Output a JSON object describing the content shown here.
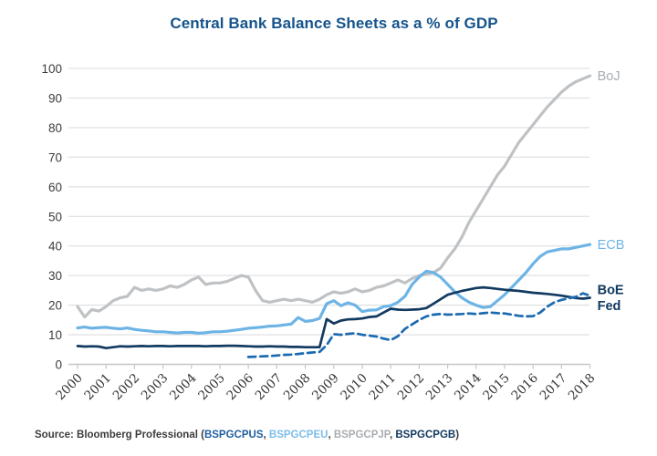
{
  "page": {
    "title": "Central Bank Balance Sheets as a % of GDP"
  },
  "chart_data": {
    "type": "line",
    "title": "Central Bank Balance Sheets as a % of GDP",
    "xlabel": "",
    "ylabel": "",
    "xlim": [
      2000,
      2018
    ],
    "ylim": [
      0,
      100
    ],
    "grid": "horizontal",
    "legend_position": "line-end-labels-right",
    "x_ticks": [
      2000,
      2001,
      2002,
      2003,
      2004,
      2005,
      2006,
      2007,
      2008,
      2009,
      2010,
      2011,
      2012,
      2013,
      2014,
      2015,
      2016,
      2017,
      2018
    ],
    "y_ticks": [
      0,
      10,
      20,
      30,
      40,
      50,
      60,
      70,
      80,
      90,
      100
    ],
    "series": [
      {
        "name": "BoJ",
        "label": "BoJ",
        "color": "#bfc2c4",
        "label_color": "#a9adb0",
        "dash": false,
        "width": 3.2,
        "label_bold": false,
        "label_dy": 0,
        "x_start": 2000,
        "x_step": 0.25,
        "values": [
          19.5,
          16.0,
          18.5,
          18.0,
          19.5,
          21.5,
          22.5,
          23.0,
          26.0,
          25.0,
          25.5,
          25.0,
          25.5,
          26.5,
          26.0,
          27.0,
          28.5,
          29.5,
          27.0,
          27.5,
          27.5,
          28.0,
          29.0,
          30.0,
          29.5,
          25.0,
          21.5,
          21.0,
          21.5,
          22.0,
          21.5,
          22.0,
          21.5,
          21.0,
          22.0,
          23.5,
          24.5,
          24.0,
          24.5,
          25.5,
          24.5,
          25.0,
          26.0,
          26.5,
          27.5,
          28.5,
          27.5,
          29.0,
          30.0,
          30.5,
          31.0,
          32.5,
          36.0,
          39.0,
          43.0,
          48.0,
          52.0,
          56.0,
          60.0,
          64.0,
          67.0,
          71.0,
          75.0,
          78.0,
          81.0,
          84.0,
          87.0,
          89.5,
          92.0,
          94.0,
          95.5,
          96.5,
          97.5
        ]
      },
      {
        "name": "ECB",
        "label": "ECB",
        "color": "#6db4e6",
        "label_color": "#6db4e6",
        "dash": false,
        "width": 3.2,
        "label_bold": false,
        "label_dy": 0,
        "x_start": 2000,
        "x_step": 0.25,
        "values": [
          12.3,
          12.6,
          12.2,
          12.4,
          12.5,
          12.2,
          12.0,
          12.3,
          11.8,
          11.5,
          11.3,
          11.0,
          11.0,
          10.8,
          10.6,
          10.8,
          10.8,
          10.5,
          10.7,
          11.0,
          11.0,
          11.2,
          11.5,
          11.8,
          12.2,
          12.4,
          12.6,
          12.9,
          13.0,
          13.3,
          13.6,
          15.8,
          14.5,
          14.8,
          15.5,
          20.5,
          21.5,
          19.8,
          20.8,
          20.0,
          17.8,
          18.3,
          18.4,
          19.5,
          19.8,
          21.0,
          23.0,
          27.0,
          29.5,
          31.5,
          31.0,
          29.5,
          27.0,
          24.5,
          22.5,
          21.0,
          20.0,
          19.2,
          19.5,
          21.5,
          23.5,
          26.0,
          28.5,
          31.0,
          34.0,
          36.5,
          38.0,
          38.5,
          39.0,
          39.0,
          39.5,
          40.0,
          40.5
        ]
      },
      {
        "name": "BoE",
        "label": "BoE",
        "color": "#123a60",
        "label_color": "#123a60",
        "dash": false,
        "width": 2.7,
        "label_bold": true,
        "label_dy": -9,
        "x_start": 2000,
        "x_step": 0.25,
        "values": [
          6.2,
          6.0,
          6.1,
          6.0,
          5.5,
          5.8,
          6.1,
          6.0,
          6.1,
          6.2,
          6.1,
          6.2,
          6.2,
          6.1,
          6.2,
          6.2,
          6.2,
          6.2,
          6.1,
          6.2,
          6.2,
          6.3,
          6.3,
          6.2,
          6.1,
          6.0,
          6.0,
          6.1,
          6.0,
          6.0,
          5.9,
          5.9,
          5.8,
          5.8,
          5.8,
          15.3,
          13.8,
          14.8,
          15.2,
          15.3,
          15.5,
          16.0,
          16.2,
          17.5,
          18.8,
          18.5,
          18.4,
          18.5,
          18.6,
          19.0,
          20.5,
          22.0,
          23.5,
          24.2,
          24.8,
          25.3,
          25.8,
          26.0,
          25.8,
          25.5,
          25.2,
          25.0,
          24.8,
          24.5,
          24.2,
          24.0,
          23.8,
          23.5,
          23.2,
          22.8,
          22.4,
          22.2,
          22.5
        ]
      },
      {
        "name": "Fed",
        "label": "Fed",
        "color": "#1b6ab1",
        "label_color": "#123a60",
        "dash": true,
        "width": 2.7,
        "label_bold": true,
        "label_dy": 11,
        "x_start": 2006,
        "x_step": 0.25,
        "values": [
          2.5,
          2.6,
          2.7,
          2.8,
          3.0,
          3.2,
          3.3,
          3.5,
          3.8,
          4.0,
          4.2,
          6.5,
          10.2,
          10.0,
          10.3,
          10.5,
          10.0,
          9.7,
          9.4,
          8.7,
          8.2,
          9.5,
          12.0,
          13.5,
          15.0,
          16.2,
          16.8,
          17.0,
          16.8,
          16.9,
          17.0,
          17.2,
          17.0,
          17.3,
          17.5,
          17.3,
          17.2,
          16.8,
          16.4,
          16.2,
          16.3,
          17.5,
          19.5,
          21.0,
          21.8,
          22.3,
          22.8,
          24.0,
          23.2
        ]
      }
    ]
  },
  "source": {
    "segments": [
      {
        "text": "Source: Bloomberg Professional (",
        "color": "#3c3c3c"
      },
      {
        "text": "BSPGCPUS",
        "color": "#1d5e9e"
      },
      {
        "text": ", ",
        "color": "#3c3c3c"
      },
      {
        "text": "BSPGCPEU",
        "color": "#7bbde9"
      },
      {
        "text": ", ",
        "color": "#3c3c3c"
      },
      {
        "text": "BSPGCPJP",
        "color": "#a9adb0"
      },
      {
        "text": ", ",
        "color": "#3c3c3c"
      },
      {
        "text": "BSPGCPGB",
        "color": "#123a60"
      },
      {
        "text": ")",
        "color": "#3c3c3c"
      }
    ]
  }
}
